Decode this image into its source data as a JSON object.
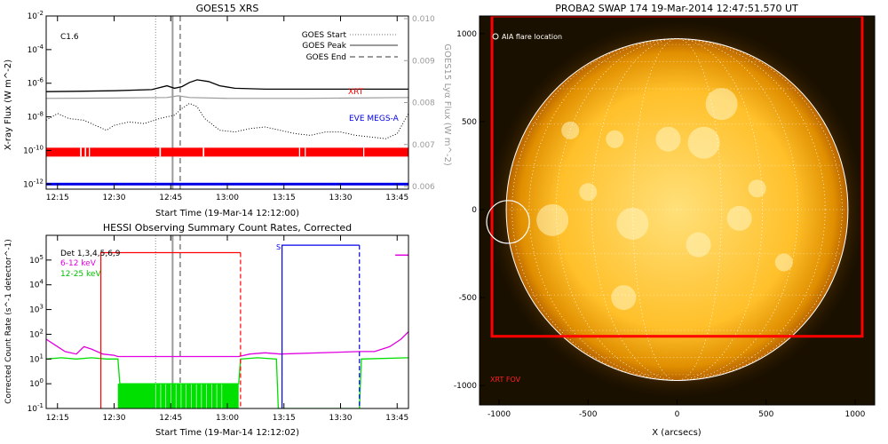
{
  "colors": {
    "black": "#000000",
    "gray": "#9a9a9a",
    "red": "#ff0000",
    "blue": "#0000e6",
    "magenta": "#e000e0",
    "green": "#00e000",
    "sun_core": "#ffcf3a",
    "sun_edge": "#d87a00",
    "sky": "#1a1000",
    "white": "#ffffff"
  },
  "chart_data": [
    {
      "type": "line",
      "title": "GOES15 XRS",
      "xlabel": "Start Time (19-Mar-14 12:12:00)",
      "ylabel": "X-ray Flux (W m^-2)",
      "y2label": "GOES15 Lyα Flux (W m^-2)",
      "xticks": [
        "12:15",
        "12:30",
        "12:45",
        "13:00",
        "13:15",
        "13:30",
        "13:45"
      ],
      "yticks_left": [
        "10^-2",
        "10^-4",
        "10^-6",
        "10^-8",
        "10^-10",
        "10^-12"
      ],
      "yticks_right": [
        "0.010",
        "0.009",
        "0.008",
        "0.007",
        "0.006"
      ],
      "xlim_minutes": [
        12,
        108
      ],
      "ylim_log10": [
        -12.3,
        -2
      ],
      "flare_class": "C1.6",
      "legend": {
        "placement": "top-right",
        "entries": [
          {
            "label": "GOES Start",
            "style": "dotted"
          },
          {
            "label": "GOES Peak",
            "style": "solid"
          },
          {
            "label": "GOES End",
            "style": "dashed"
          }
        ]
      },
      "markers": {
        "goes_start": 41,
        "goes_peak": 45.5,
        "goes_end": 47.5
      },
      "series": [
        {
          "name": "XRT",
          "role": "label",
          "color": "red"
        },
        {
          "name": "EVE MEGS-A",
          "role": "label",
          "color": "blue"
        }
      ],
      "traces": {
        "long_channel": [
          [
            12,
            -6.5
          ],
          [
            20,
            -6.48
          ],
          [
            30,
            -6.45
          ],
          [
            40,
            -6.38
          ],
          [
            44,
            -6.15
          ],
          [
            46,
            -6.3
          ],
          [
            48,
            -6.2
          ],
          [
            50,
            -5.95
          ],
          [
            52,
            -5.8
          ],
          [
            55,
            -5.9
          ],
          [
            58,
            -6.15
          ],
          [
            62,
            -6.3
          ],
          [
            70,
            -6.35
          ],
          [
            80,
            -6.35
          ],
          [
            90,
            -6.35
          ],
          [
            100,
            -6.35
          ],
          [
            108,
            -6.35
          ]
        ],
        "lya": [
          [
            12,
            -6.9
          ],
          [
            30,
            -6.88
          ],
          [
            44,
            -6.85
          ],
          [
            47,
            -6.75
          ],
          [
            50,
            -6.85
          ],
          [
            60,
            -6.9
          ],
          [
            80,
            -6.9
          ],
          [
            108,
            -6.85
          ]
        ],
        "short_channel": [
          [
            12,
            -8.2
          ],
          [
            15,
            -7.8
          ],
          [
            18,
            -8.1
          ],
          [
            22,
            -8.2
          ],
          [
            26,
            -8.6
          ],
          [
            28,
            -8.8
          ],
          [
            30,
            -8.5
          ],
          [
            34,
            -8.3
          ],
          [
            38,
            -8.4
          ],
          [
            42,
            -8.1
          ],
          [
            46,
            -7.9
          ],
          [
            48,
            -7.5
          ],
          [
            50,
            -7.2
          ],
          [
            52,
            -7.4
          ],
          [
            54,
            -8.1
          ],
          [
            58,
            -8.8
          ],
          [
            62,
            -8.9
          ],
          [
            66,
            -8.7
          ],
          [
            70,
            -8.6
          ],
          [
            74,
            -8.8
          ],
          [
            78,
            -9.0
          ],
          [
            82,
            -9.1
          ],
          [
            86,
            -8.9
          ],
          [
            90,
            -8.9
          ],
          [
            94,
            -9.1
          ],
          [
            98,
            -9.2
          ],
          [
            102,
            -9.3
          ],
          [
            105,
            -9.0
          ],
          [
            108,
            -7.8
          ]
        ]
      },
      "xrt_bar_log10": -10.1,
      "eve_bar_log10": -12.0
    },
    {
      "type": "line",
      "title": "HESSI Observing Summary Count Rates, Corrected",
      "xlabel": "Start Time (19-Mar-14 12:12:02)",
      "ylabel": "Corrected Count Rate (s^-1 detector^-1)",
      "xticks": [
        "12:15",
        "12:30",
        "12:45",
        "13:00",
        "13:15",
        "13:30",
        "13:45"
      ],
      "yticks": [
        "10^5",
        "10^4",
        "10^3",
        "10^2",
        "10^1",
        "10^0",
        "10^-1"
      ],
      "ylim_log10": [
        -1,
        6
      ],
      "xlim_minutes": [
        12,
        108
      ],
      "legend": {
        "placement": "top-left",
        "entries": [
          {
            "label": "Det 1,3,4,5,6,9",
            "color": "black"
          },
          {
            "label": "6-12 keV",
            "color": "magenta"
          },
          {
            "label": "12-25 keV",
            "color": "green"
          }
        ]
      },
      "s_label": "S",
      "markers": {
        "goes_start": 41,
        "goes_peak": 45.5,
        "goes_end": 47.5
      },
      "red_segment": {
        "start": 26.5,
        "end": 63.5,
        "level_log10": 5.3
      },
      "blue_segment": {
        "start": 74.5,
        "end": 95,
        "level_log10": 5.6
      },
      "magenta_trace": [
        [
          12,
          1.8
        ],
        [
          14,
          1.6
        ],
        [
          17,
          1.3
        ],
        [
          20,
          1.2
        ],
        [
          22,
          1.5
        ],
        [
          24,
          1.4
        ],
        [
          27,
          1.2
        ],
        [
          30,
          1.15
        ],
        [
          31,
          1.1
        ],
        [
          63,
          1.1
        ],
        [
          66,
          1.2
        ],
        [
          70,
          1.25
        ],
        [
          74,
          1.2
        ],
        [
          95,
          1.3
        ],
        [
          99,
          1.3
        ],
        [
          103,
          1.5
        ],
        [
          106,
          1.8
        ],
        [
          108,
          2.1
        ]
      ],
      "green_trace": [
        [
          12,
          1.0
        ],
        [
          16,
          1.05
        ],
        [
          20,
          1.0
        ],
        [
          24,
          1.05
        ],
        [
          28,
          1.0
        ],
        [
          31,
          1.0
        ],
        [
          31.5,
          0
        ],
        [
          63,
          0
        ],
        [
          63.5,
          1.0
        ],
        [
          68,
          1.05
        ],
        [
          73,
          1.0
        ],
        [
          73.5,
          -1
        ],
        [
          95,
          -1
        ],
        [
          95.5,
          1.0
        ],
        [
          108,
          1.05
        ]
      ],
      "magenta_dot_log10": 5.2
    },
    {
      "type": "image",
      "title": "PROBA2 SWAP 174 19-Mar-2014 12:47:51.570 UT",
      "xlabel": "X (arcsecs)",
      "xticks": [
        "-1000",
        "-500",
        "0",
        "500",
        "1000"
      ],
      "yticks": [
        "1000",
        "500",
        "0",
        "-500",
        "-1000"
      ],
      "xlim": [
        -1110,
        1110
      ],
      "ylim": [
        -1110,
        1100
      ],
      "solar_radius": 960,
      "flare_location": {
        "label": "AIA flare location",
        "x": -950,
        "y": -70
      },
      "xrt_fov": {
        "label": "XRT FOV",
        "x0": -1040,
        "x1": 1040,
        "y0": -720,
        "y1": 1100
      }
    }
  ]
}
